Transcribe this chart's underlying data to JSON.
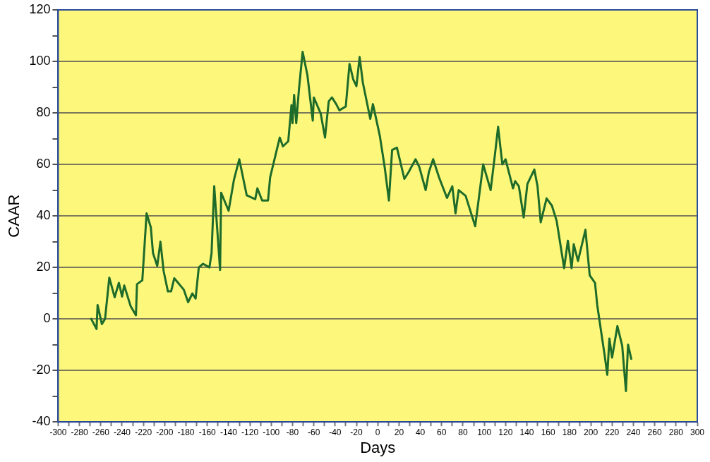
{
  "chart_data": {
    "type": "line",
    "xlabel": "Days",
    "ylabel": "CAAR",
    "xlim": [
      -300,
      300
    ],
    "ylim": [
      -40,
      120
    ],
    "xticks": [
      -300,
      {
        "value": -290,
        "label": null
      },
      -280,
      {
        "value": -270,
        "label": null
      },
      -260,
      {
        "value": -250,
        "label": null
      },
      -240,
      {
        "value": -230,
        "label": null
      },
      -220,
      {
        "value": -210,
        "label": null
      },
      -200,
      {
        "value": -190,
        "label": null
      },
      -180,
      {
        "value": -170,
        "label": null
      },
      -160,
      {
        "value": -150,
        "label": null
      },
      -140,
      {
        "value": -130,
        "label": null
      },
      -120,
      {
        "value": -110,
        "label": null
      },
      -100,
      {
        "value": -90,
        "label": null
      },
      -80,
      {
        "value": -70,
        "label": null
      },
      -60,
      {
        "value": -50,
        "label": null
      },
      -40,
      {
        "value": -30,
        "label": null
      },
      -20,
      {
        "value": -10,
        "label": null
      },
      0,
      {
        "value": 10,
        "label": null
      },
      20,
      {
        "value": 30,
        "label": null
      },
      40,
      {
        "value": 50,
        "label": null
      },
      60,
      {
        "value": 70,
        "label": null
      },
      80,
      {
        "value": 90,
        "label": null
      },
      100,
      {
        "value": 110,
        "label": null
      },
      120,
      {
        "value": 130,
        "label": null
      },
      140,
      {
        "value": 150,
        "label": null
      },
      160,
      {
        "value": 170,
        "label": null
      },
      180,
      {
        "value": 190,
        "label": null
      },
      200,
      {
        "value": 210,
        "label": null
      },
      220,
      {
        "value": 230,
        "label": null
      },
      240,
      {
        "value": 250,
        "label": null
      },
      260,
      {
        "value": 270,
        "label": null
      },
      280,
      {
        "value": 290,
        "label": null
      },
      300
    ],
    "yticks": [
      -40,
      {
        "value": -30,
        "label": null
      },
      -20,
      {
        "value": -10,
        "label": null
      },
      0,
      {
        "value": 10,
        "label": null
      },
      20,
      {
        "value": 30,
        "label": null
      },
      40,
      {
        "value": 50,
        "label": null
      },
      60,
      {
        "value": 70,
        "label": null
      },
      80,
      {
        "value": 90,
        "label": null
      },
      100,
      {
        "value": 110,
        "label": null
      },
      120
    ],
    "grid": "y",
    "legend": false,
    "marker": "none",
    "line_style": "solid",
    "series": [
      {
        "color": "#1e6b2a",
        "x": [
          -269,
          -264,
          -263,
          -259,
          -256,
          -252,
          -247,
          -243,
          -240,
          -238,
          -232,
          -227,
          -226,
          -221,
          -217,
          -213,
          -211,
          -207,
          -204,
          -201,
          -197,
          -194,
          -191,
          -182,
          -178,
          -174,
          -171,
          -168,
          -164,
          -158,
          -156,
          -153.5,
          -148,
          -147,
          -140,
          -135,
          -130,
          -123,
          -115,
          -113,
          -108.5,
          -103,
          -101,
          -92,
          -89,
          -84,
          -81,
          -80,
          -78.5,
          -76.5,
          -74,
          -70.5,
          -66,
          -61,
          -60,
          -53.5,
          -49.5,
          -46,
          -43,
          -39,
          -36,
          -30,
          -26.5,
          -23,
          -20,
          -17,
          -14,
          -7,
          -4.5,
          2,
          6.5,
          10.5,
          13.5,
          18,
          25,
          29,
          35.5,
          39,
          45,
          48,
          52,
          57.5,
          65,
          70,
          73,
          76,
          82.5,
          91.5,
          99,
          106,
          110,
          113,
          117,
          120,
          127,
          129,
          132.5,
          137,
          140.5,
          147,
          150,
          153,
          158.5,
          163.5,
          168,
          175,
          178.5,
          182,
          184,
          188,
          195,
          199,
          204,
          206,
          210,
          213,
          215.5,
          217.5,
          220,
          225,
          229.5,
          233,
          235,
          238
        ],
        "values": [
          0,
          -3.9,
          5.4,
          -2,
          0,
          16,
          8.4,
          14,
          8.7,
          13,
          5,
          1.4,
          13.5,
          15,
          41,
          35.5,
          25.6,
          20.6,
          30,
          18.6,
          10.7,
          10.7,
          15.8,
          11.3,
          6.5,
          9.9,
          7.9,
          20,
          21.4,
          20,
          25.6,
          51.5,
          19,
          49,
          42,
          54,
          62,
          48,
          46.5,
          50.7,
          46,
          46,
          55,
          70.4,
          67,
          69,
          83,
          76,
          87,
          76,
          89,
          103.7,
          94.6,
          77,
          86,
          79.7,
          70.4,
          84.5,
          86,
          83.4,
          81,
          82.5,
          99,
          93,
          90.4,
          101.7,
          91.8,
          77.7,
          83.4,
          71,
          59,
          46,
          65.6,
          66.5,
          54.4,
          57,
          62,
          59,
          50,
          57,
          62,
          55,
          47,
          51.5,
          41,
          50,
          47.8,
          36,
          60,
          50,
          63.7,
          74.6,
          60,
          62,
          50.7,
          53.5,
          51.5,
          39.4,
          52.4,
          58,
          51.5,
          37.5,
          46.8,
          44,
          38,
          19.7,
          30.4,
          19.7,
          29,
          22.5,
          34.6,
          16.9,
          14,
          5.6,
          -5.7,
          -14,
          -21.7,
          -7.6,
          -15,
          -2.8,
          -10.4,
          -28,
          -10,
          -15.5
        ]
      }
    ]
  }
}
